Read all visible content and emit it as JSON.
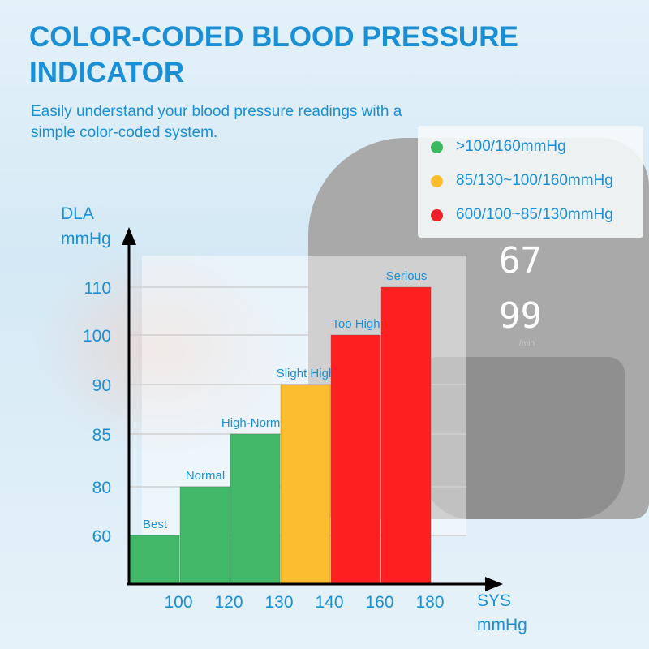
{
  "header": {
    "title": "COLOR-CODED BLOOD PRESSURE INDICATOR",
    "subtitle": "Easily understand your blood pressure readings with a simple color-coded system."
  },
  "legend": [
    {
      "label": ">100/160mmHg",
      "color": "#3cb95e"
    },
    {
      "label": "85/130~100/160mmHg",
      "color": "#fbbd2e"
    },
    {
      "label": "600/100~85/130mmHg",
      "color": "#ee2126"
    }
  ],
  "device": {
    "dia_reading": "67",
    "pulse_reading": "99",
    "pulse_unit": "/min"
  },
  "chart_data": {
    "type": "bar",
    "ylabel": [
      "DLA",
      "mmHg"
    ],
    "xlabel": [
      "SYS",
      "mmHg"
    ],
    "y_ticks": [
      "60",
      "80",
      "85",
      "90",
      "100",
      "110"
    ],
    "x_ticks": [
      "100",
      "120",
      "130",
      "140",
      "160",
      "180"
    ],
    "categories": [
      "Best",
      "Normal",
      "High-Normal",
      "Slight High",
      "Too High",
      "Serious"
    ],
    "values": [
      60,
      80,
      85,
      90,
      100,
      110
    ],
    "colors": [
      "#42b968",
      "#42b968",
      "#42b968",
      "#fbbe30",
      "#fe2020",
      "#fe2020"
    ],
    "grid": true
  }
}
